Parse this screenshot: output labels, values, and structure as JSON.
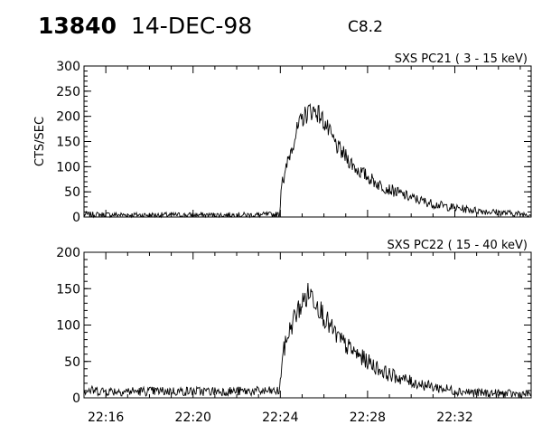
{
  "header": {
    "event_id": "13840",
    "date": "14-DEC-98",
    "flare_class": "C8.2"
  },
  "chart_data": [
    {
      "type": "line",
      "title": "SXS PC21  (  3 - 15 keV)",
      "ylabel": "CTS/SEC",
      "xlabel": "",
      "xlim": [
        "22:15",
        "22:35:30"
      ],
      "ylim": [
        0,
        300
      ],
      "yticks": [
        0,
        50,
        100,
        150,
        200,
        250,
        300
      ],
      "xticks": [
        "22:16",
        "22:20",
        "22:24",
        "22:28",
        "22:32"
      ],
      "grid": false,
      "series": [
        {
          "x": [
            "22:15",
            "22:17",
            "22:20",
            "22:22:30",
            "22:23:58",
            "22:24:05",
            "22:24:10",
            "22:24:20",
            "22:24:30",
            "22:24:40",
            "22:25:00",
            "22:25:20",
            "22:25:40",
            "22:26:00",
            "22:26:20",
            "22:26:40",
            "22:27:00",
            "22:27:30",
            "22:28:00",
            "22:28:30",
            "22:29:00",
            "22:30:00",
            "22:31:00",
            "22:32:00",
            "22:33:00",
            "22:34:00",
            "22:35:00",
            "22:35:30"
          ],
          "values": [
            5,
            4,
            4,
            4,
            5,
            88,
            70,
            110,
            135,
            160,
            195,
            212,
            210,
            190,
            160,
            135,
            120,
            95,
            80,
            65,
            55,
            38,
            26,
            18,
            13,
            9,
            6,
            5
          ]
        }
      ]
    },
    {
      "type": "line",
      "title": "SXS PC22  ( 15 - 40 keV)",
      "ylabel": "",
      "xlabel": "",
      "xlim": [
        "22:15",
        "22:35:30"
      ],
      "ylim": [
        0,
        200
      ],
      "yticks": [
        0,
        50,
        100,
        150,
        200
      ],
      "xticks": [
        "22:16",
        "22:20",
        "22:24",
        "22:28",
        "22:32"
      ],
      "grid": false,
      "series": [
        {
          "x": [
            "22:15",
            "22:17",
            "22:20",
            "22:22:30",
            "22:23:58",
            "22:24:05",
            "22:24:20",
            "22:24:40",
            "22:25:00",
            "22:25:20",
            "22:25:40",
            "22:26:00",
            "22:26:20",
            "22:26:40",
            "22:27:00",
            "22:27:30",
            "22:28:00",
            "22:28:30",
            "22:29:00",
            "22:30:00",
            "22:31:00",
            "22:32:00",
            "22:33:00",
            "22:34:00",
            "22:35:00",
            "22:35:30"
          ],
          "values": [
            10,
            9,
            9,
            9,
            9,
            55,
            85,
            112,
            130,
            145,
            132,
            112,
            95,
            82,
            72,
            60,
            50,
            40,
            32,
            22,
            15,
            10,
            7,
            6,
            5,
            5
          ]
        }
      ]
    }
  ]
}
